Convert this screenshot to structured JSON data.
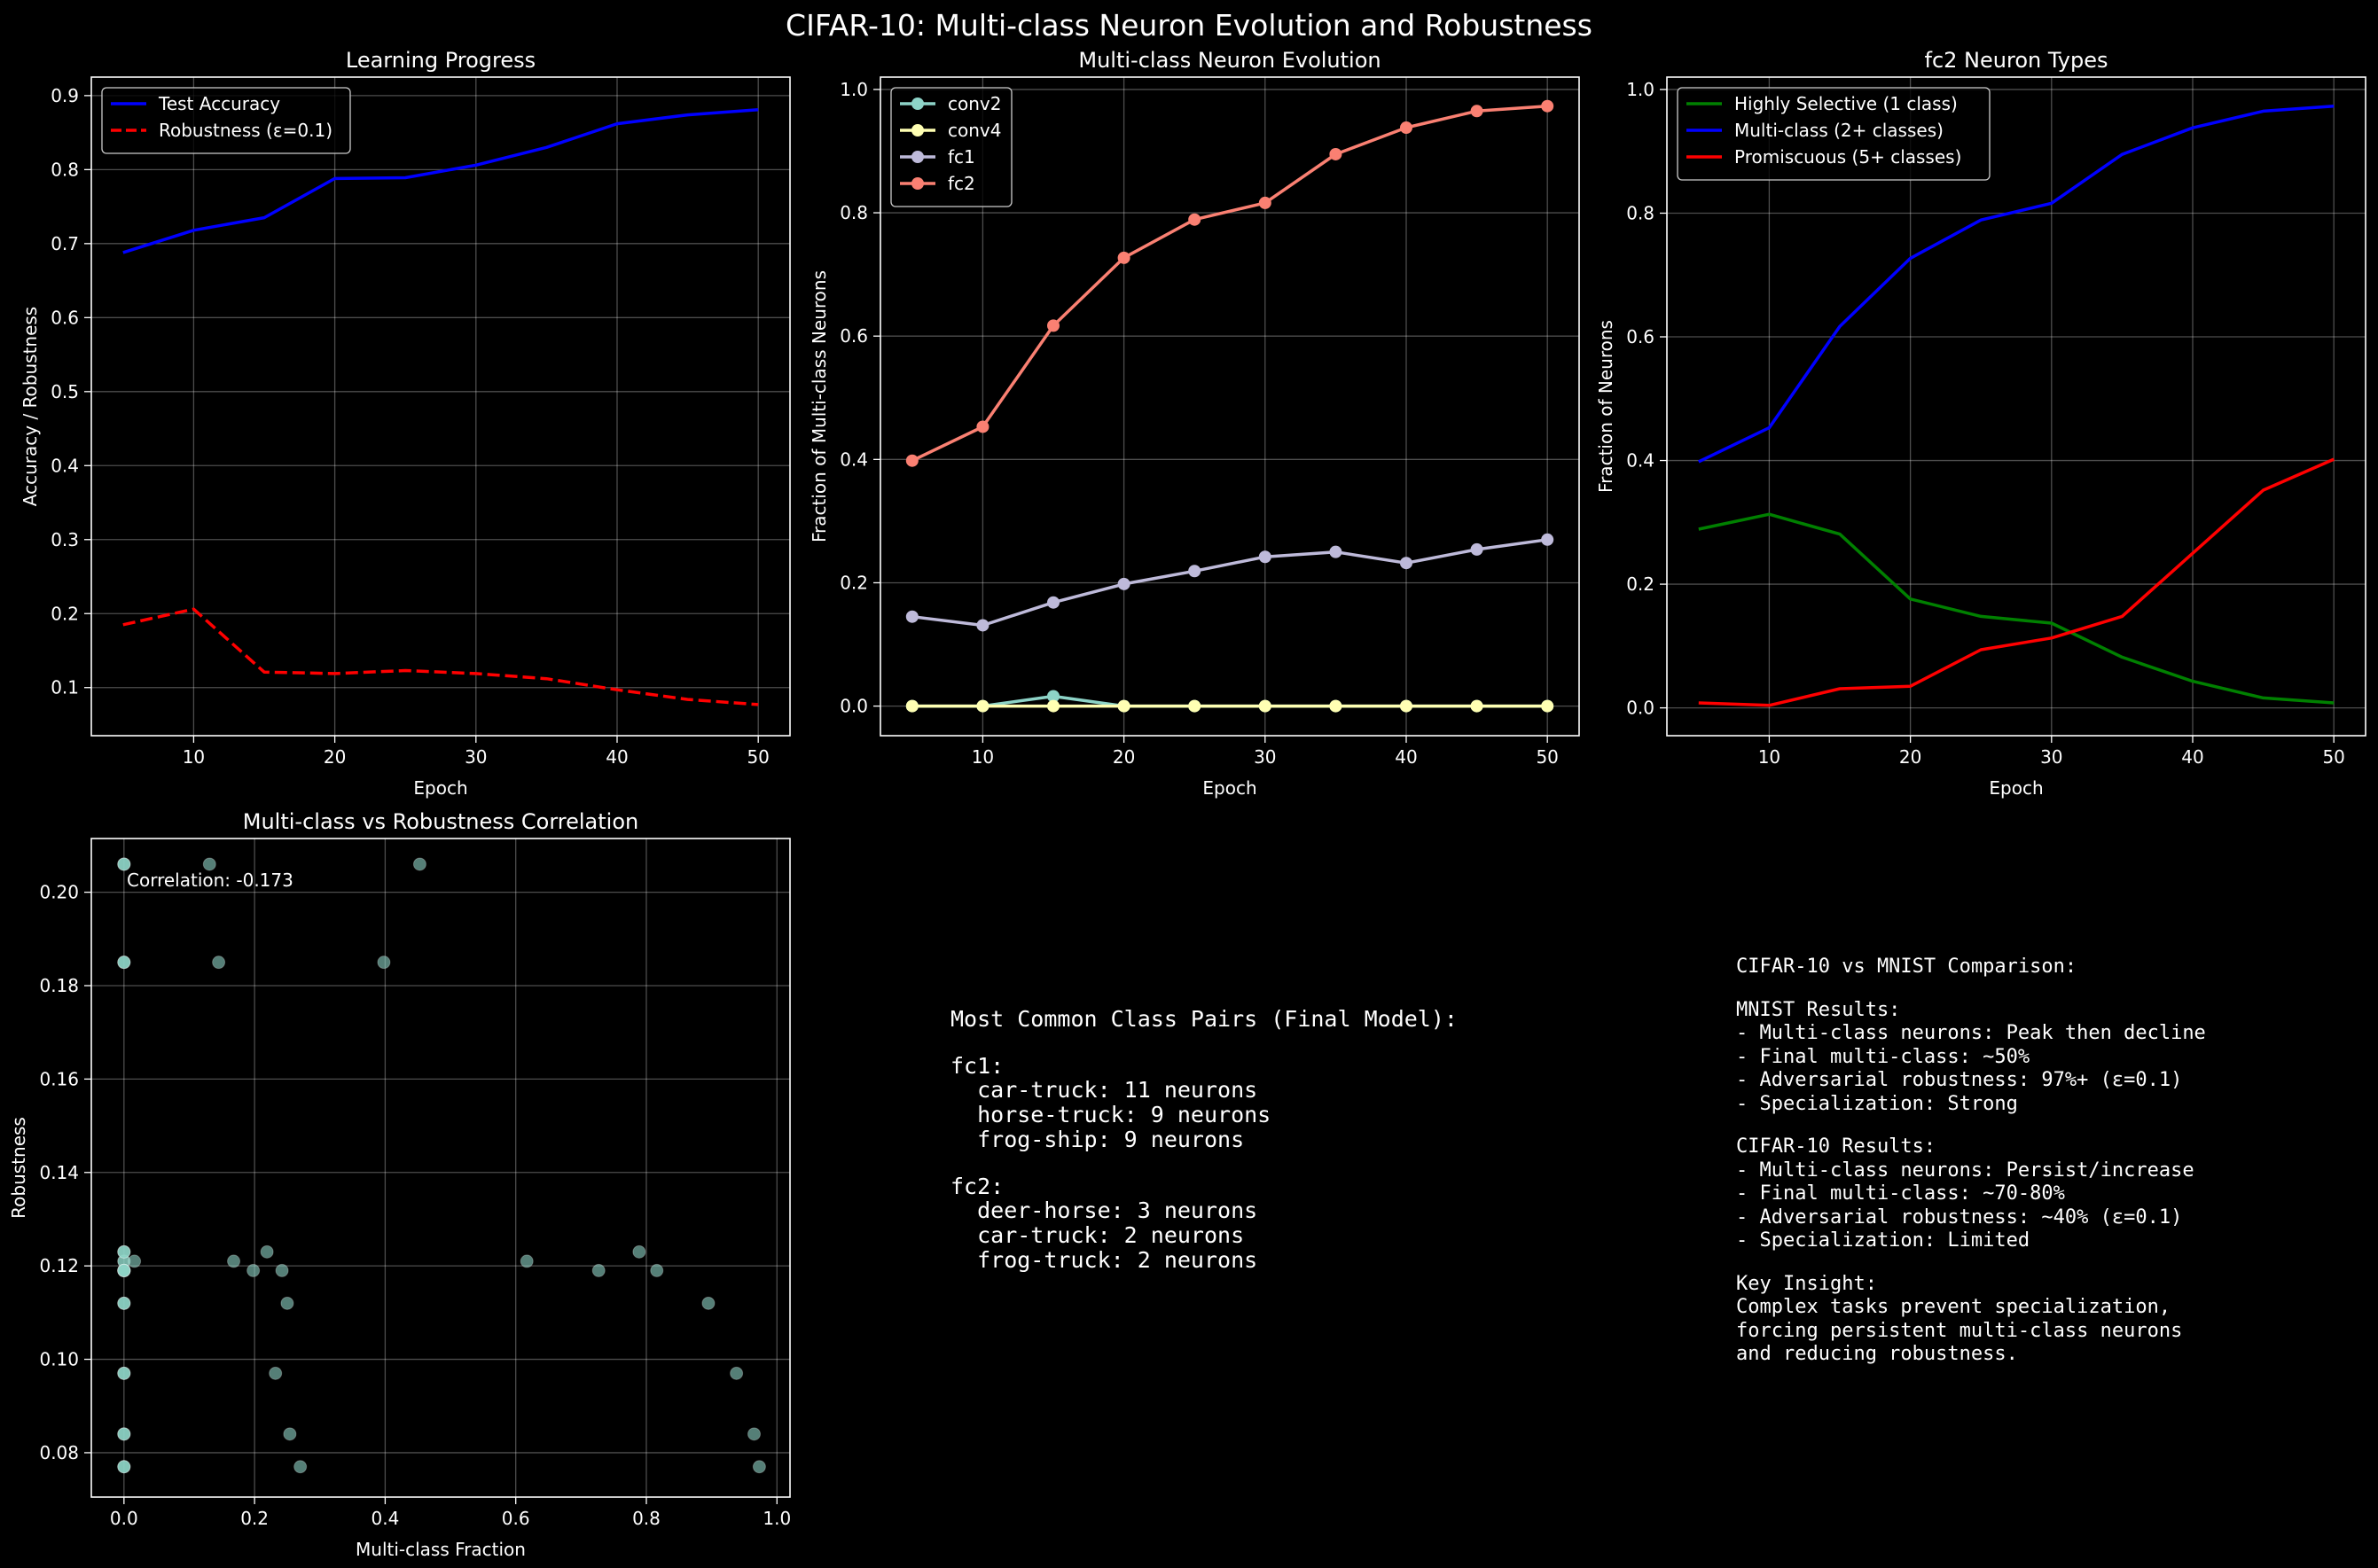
{
  "figure_title": "CIFAR-10: Multi-class Neuron Evolution and Robustness",
  "chart_data": [
    {
      "type": "line",
      "title": "Learning Progress",
      "xlabel": "Epoch",
      "ylabel": "Accuracy / Robustness",
      "xlim": [
        2.75,
        52.25
      ],
      "ylim": [
        0.035,
        0.925
      ],
      "xticks": [
        10,
        20,
        30,
        40,
        50
      ],
      "yticks": [
        0.1,
        0.2,
        0.3,
        0.4,
        0.5,
        0.6,
        0.7,
        0.8,
        0.9
      ],
      "grid": true,
      "legend": "top-left",
      "x": [
        5,
        10,
        15,
        20,
        25,
        30,
        35,
        40,
        45,
        50
      ],
      "series": [
        {
          "name": "Test Accuracy",
          "color": "#0000ff",
          "dash": "solid",
          "marker": false,
          "values": [
            0.688,
            0.718,
            0.735,
            0.788,
            0.789,
            0.806,
            0.83,
            0.862,
            0.874,
            0.881
          ]
        },
        {
          "name": "Robustness (ε=0.1)",
          "color": "#ff0000",
          "dash": "dashed",
          "marker": false,
          "values": [
            0.185,
            0.206,
            0.121,
            0.119,
            0.123,
            0.119,
            0.112,
            0.097,
            0.084,
            0.077
          ]
        }
      ]
    },
    {
      "type": "line",
      "title": "Multi-class Neuron Evolution",
      "xlabel": "Epoch",
      "ylabel": "Fraction of Multi-class Neurons",
      "xlim": [
        2.75,
        52.25
      ],
      "ylim": [
        -0.048,
        1.02
      ],
      "xticks": [
        10,
        20,
        30,
        40,
        50
      ],
      "yticks": [
        0.0,
        0.2,
        0.4,
        0.6,
        0.8,
        1.0
      ],
      "grid": true,
      "legend": "top-left",
      "x": [
        5,
        10,
        15,
        20,
        25,
        30,
        35,
        40,
        45,
        50
      ],
      "series": [
        {
          "name": "conv2",
          "color": "#8dd3c7",
          "dash": "solid",
          "marker": true,
          "values": [
            0.0,
            0.0,
            0.016,
            0.0,
            0.0,
            0.0,
            0.0,
            0.0,
            0.0,
            0.0
          ]
        },
        {
          "name": "conv4",
          "color": "#ffffb3",
          "dash": "solid",
          "marker": true,
          "values": [
            0.0,
            0.0,
            0.0,
            0.0,
            0.0,
            0.0,
            0.0,
            0.0,
            0.0,
            0.0
          ]
        },
        {
          "name": "fc1",
          "color": "#bebada",
          "dash": "solid",
          "marker": true,
          "values": [
            0.145,
            0.131,
            0.168,
            0.198,
            0.219,
            0.242,
            0.25,
            0.232,
            0.254,
            0.27
          ]
        },
        {
          "name": "fc2",
          "color": "#fa8072",
          "dash": "solid",
          "marker": true,
          "values": [
            0.398,
            0.453,
            0.617,
            0.727,
            0.789,
            0.816,
            0.895,
            0.938,
            0.965,
            0.973
          ]
        }
      ]
    },
    {
      "type": "line",
      "title": "fc2 Neuron Types",
      "xlabel": "Epoch",
      "ylabel": "Fraction of Neurons",
      "xlim": [
        2.75,
        52.25
      ],
      "ylim": [
        -0.045,
        1.02
      ],
      "xticks": [
        10,
        20,
        30,
        40,
        50
      ],
      "yticks": [
        0.0,
        0.2,
        0.4,
        0.6,
        0.8,
        1.0
      ],
      "grid": true,
      "legend": "top-left",
      "x": [
        5,
        10,
        15,
        20,
        25,
        30,
        35,
        40,
        45,
        50
      ],
      "series": [
        {
          "name": "Highly Selective (1 class)",
          "color": "#008000",
          "dash": "solid",
          "marker": false,
          "values": [
            0.289,
            0.313,
            0.281,
            0.176,
            0.148,
            0.137,
            0.082,
            0.043,
            0.016,
            0.008
          ]
        },
        {
          "name": "Multi-class (2+ classes)",
          "color": "#0000ff",
          "dash": "solid",
          "marker": false,
          "values": [
            0.398,
            0.453,
            0.617,
            0.727,
            0.789,
            0.816,
            0.895,
            0.938,
            0.965,
            0.973
          ]
        },
        {
          "name": "Promiscuous (5+ classes)",
          "color": "#ff0000",
          "dash": "solid",
          "marker": false,
          "values": [
            0.008,
            0.004,
            0.031,
            0.035,
            0.094,
            0.113,
            0.148,
            0.25,
            0.352,
            0.402
          ]
        }
      ]
    },
    {
      "type": "scatter",
      "title": "Multi-class vs Robustness Correlation",
      "xlabel": "Multi-class Fraction",
      "ylabel": "Robustness",
      "xlim": [
        -0.05,
        1.02
      ],
      "ylim": [
        0.0705,
        0.2115
      ],
      "xticks": [
        0.0,
        0.2,
        0.4,
        0.6,
        0.8,
        1.0
      ],
      "yticks": [
        0.08,
        0.1,
        0.12,
        0.14,
        0.16,
        0.18,
        0.2
      ],
      "grid": true,
      "annotation": "Correlation: -0.173",
      "color": "#8dd3c7",
      "points": [
        [
          0.0,
          0.185
        ],
        [
          0.0,
          0.206
        ],
        [
          0.0,
          0.121
        ],
        [
          0.0,
          0.119
        ],
        [
          0.0,
          0.123
        ],
        [
          0.0,
          0.119
        ],
        [
          0.0,
          0.112
        ],
        [
          0.0,
          0.097
        ],
        [
          0.0,
          0.084
        ],
        [
          0.0,
          0.077
        ],
        [
          0.0,
          0.185
        ],
        [
          0.0,
          0.206
        ],
        [
          0.0,
          0.121
        ],
        [
          0.0,
          0.119
        ],
        [
          0.0,
          0.123
        ],
        [
          0.0,
          0.119
        ],
        [
          0.0,
          0.112
        ],
        [
          0.0,
          0.097
        ],
        [
          0.0,
          0.084
        ],
        [
          0.0,
          0.077
        ],
        [
          0.145,
          0.185
        ],
        [
          0.131,
          0.206
        ],
        [
          0.168,
          0.121
        ],
        [
          0.198,
          0.119
        ],
        [
          0.219,
          0.123
        ],
        [
          0.242,
          0.119
        ],
        [
          0.25,
          0.112
        ],
        [
          0.232,
          0.097
        ],
        [
          0.254,
          0.084
        ],
        [
          0.27,
          0.077
        ],
        [
          0.398,
          0.185
        ],
        [
          0.453,
          0.206
        ],
        [
          0.617,
          0.121
        ],
        [
          0.727,
          0.119
        ],
        [
          0.789,
          0.123
        ],
        [
          0.816,
          0.119
        ],
        [
          0.895,
          0.112
        ],
        [
          0.938,
          0.097
        ],
        [
          0.965,
          0.084
        ],
        [
          0.973,
          0.077
        ],
        [
          0.0,
          0.185
        ],
        [
          0.0,
          0.206
        ],
        [
          0.016,
          0.121
        ],
        [
          0.0,
          0.119
        ],
        [
          0.0,
          0.123
        ],
        [
          0.0,
          0.119
        ],
        [
          0.0,
          0.112
        ],
        [
          0.0,
          0.097
        ],
        [
          0.0,
          0.084
        ],
        [
          0.0,
          0.077
        ]
      ]
    }
  ],
  "class_pairs_text": [
    "Most Common Class Pairs (Final Model):",
    "",
    "fc1:",
    "  car-truck: 11 neurons",
    "  horse-truck: 9 neurons",
    "  frog-ship: 9 neurons",
    "",
    "fc2:",
    "  deer-horse: 3 neurons",
    "  car-truck: 2 neurons",
    "  frog-truck: 2 neurons"
  ],
  "comparison_text": [
    "CIFAR-10 vs MNIST Comparison:",
    "",
    "MNIST Results:",
    "- Multi-class neurons: Peak then decline",
    "- Final multi-class: ~50%",
    "- Adversarial robustness: 97%+ (ε=0.1)",
    "- Specialization: Strong",
    "",
    "CIFAR-10 Results:",
    "- Multi-class neurons: Persist/increase",
    "- Final multi-class: ~70-80%",
    "- Adversarial robustness: ~40% (ε=0.1)",
    "- Specialization: Limited",
    "",
    "Key Insight:",
    "Complex tasks prevent specialization,",
    "forcing persistent multi-class neurons",
    "and reducing robustness."
  ]
}
